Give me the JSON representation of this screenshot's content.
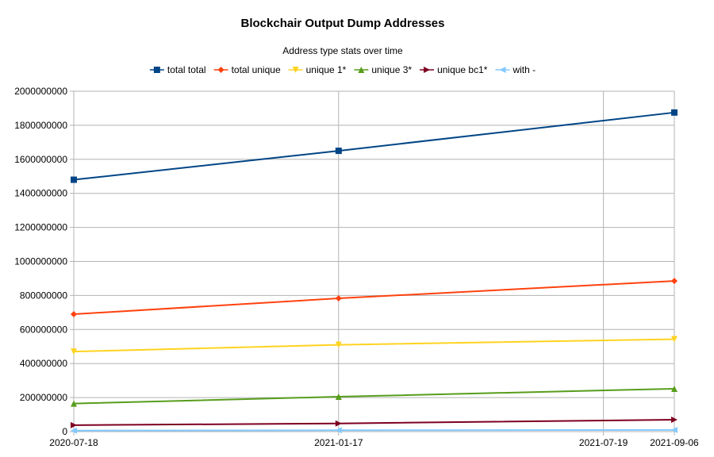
{
  "chart_data": {
    "type": "line",
    "title": "Blockchair Output Dump Addresses",
    "subtitle": "Address type stats over time",
    "x_type": "date",
    "x": [
      "2020-07-18",
      "2021-01-17",
      "2021-07-19",
      "2021-09-06"
    ],
    "xlim": [
      "2020-07-18",
      "2021-09-06"
    ],
    "ylim": [
      0,
      2000000000
    ],
    "yticks": [
      0,
      200000000,
      400000000,
      600000000,
      800000000,
      1000000000,
      1200000000,
      1400000000,
      1600000000,
      1800000000,
      2000000000
    ],
    "grid": true,
    "legend_position": "top",
    "series": [
      {
        "name": "total total",
        "color": "#004586",
        "marker": "square",
        "points": [
          [
            "2020-07-18",
            1480000000
          ],
          [
            "2021-01-17",
            1650000000
          ],
          [
            "2021-09-06",
            1875000000
          ]
        ]
      },
      {
        "name": "total unique",
        "color": "#ff420e",
        "marker": "diamond",
        "points": [
          [
            "2020-07-18",
            690000000
          ],
          [
            "2021-01-17",
            783000000
          ],
          [
            "2021-09-06",
            885000000
          ]
        ]
      },
      {
        "name": "unique 1*",
        "color": "#ffd320",
        "marker": "triangle-down",
        "points": [
          [
            "2020-07-18",
            470000000
          ],
          [
            "2021-01-17",
            510000000
          ],
          [
            "2021-09-06",
            543000000
          ]
        ]
      },
      {
        "name": "unique 3*",
        "color": "#579d1c",
        "marker": "triangle-up",
        "points": [
          [
            "2020-07-18",
            165000000
          ],
          [
            "2021-01-17",
            205000000
          ],
          [
            "2021-09-06",
            252000000
          ]
        ]
      },
      {
        "name": "unique bc1*",
        "color": "#7e0021",
        "marker": "triangle-right",
        "points": [
          [
            "2020-07-18",
            38000000
          ],
          [
            "2021-01-17",
            48000000
          ],
          [
            "2021-09-06",
            70000000
          ]
        ]
      },
      {
        "name": "with -",
        "color": "#83caff",
        "marker": "triangle-left",
        "points": [
          [
            "2020-07-18",
            6000000
          ],
          [
            "2021-01-17",
            8000000
          ],
          [
            "2021-09-06",
            10000000
          ]
        ]
      }
    ]
  }
}
